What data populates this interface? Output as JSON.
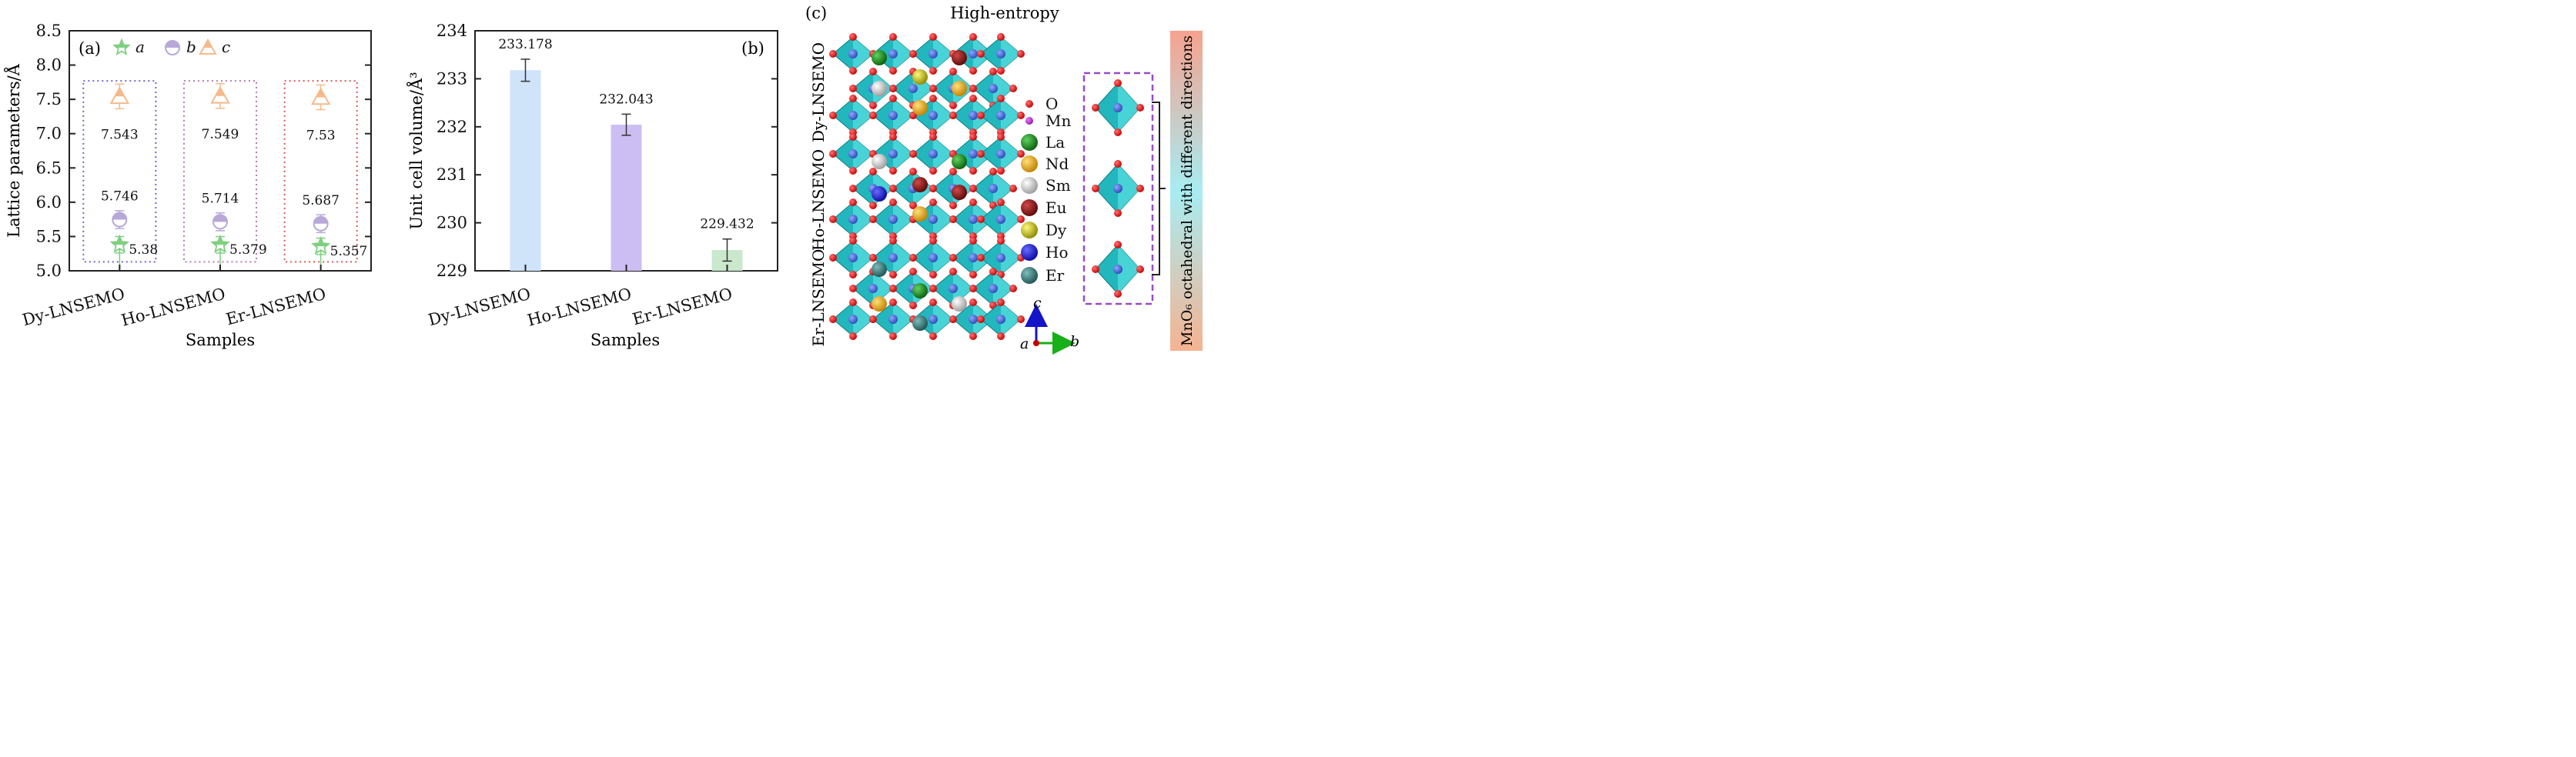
{
  "chart_data": [
    {
      "panel": "(a)",
      "type": "scatter",
      "xlabel": "Samples",
      "ylabel": "Lattice parameters/Å",
      "ylim": [
        5.0,
        8.5
      ],
      "yticks": [
        "5.0",
        "5.5",
        "6.0",
        "6.5",
        "7.0",
        "7.5",
        "8.0",
        "8.5"
      ],
      "categories": [
        "Dy-LNSEMO",
        "Ho-LNSEMO",
        "Er-LNSEMO"
      ],
      "legend": [
        "a",
        "b",
        "c"
      ],
      "legend_placement": "top-left",
      "series": [
        {
          "name": "a",
          "marker": "star",
          "color": "#7fcf80",
          "values": [
            5.38,
            5.379,
            5.357
          ],
          "labels": [
            "5.38",
            "5.379",
            "5.357"
          ],
          "err": [
            0.12,
            0.12,
            0.12
          ]
        },
        {
          "name": "b",
          "marker": "half-circle",
          "color": "#b7a8d8",
          "values": [
            5.746,
            5.714,
            5.687
          ],
          "labels": [
            "5.746",
            "5.714",
            "5.687"
          ],
          "err": [
            0.13,
            0.13,
            0.13
          ]
        },
        {
          "name": "c",
          "marker": "half-triangle",
          "color": "#f6b98b",
          "values": [
            7.543,
            7.549,
            7.53
          ],
          "labels": [
            "7.543",
            "7.549",
            "7.53"
          ],
          "err": [
            0.18,
            0.18,
            0.18
          ]
        }
      ],
      "boxes": [
        {
          "color": "#6f67c9",
          "y_range": [
            5.13,
            7.77
          ]
        },
        {
          "color": "#b57ab0",
          "y_range": [
            5.13,
            7.77
          ]
        },
        {
          "color": "#d65a5a",
          "y_range": [
            5.13,
            7.77
          ]
        }
      ]
    },
    {
      "panel": "(b)",
      "type": "bar",
      "xlabel": "Samples",
      "ylabel": "Unit cell volume/Å³",
      "ylim": [
        229,
        234
      ],
      "yticks": [
        "229",
        "230",
        "231",
        "232",
        "233",
        "234"
      ],
      "categories": [
        "Dy-LNSEMO",
        "Ho-LNSEMO",
        "Er-LNSEMO"
      ],
      "values": [
        233.178,
        232.043,
        229.432
      ],
      "labels": [
        "233.178",
        "232.043",
        "229.432"
      ],
      "err": [
        0.23,
        0.22,
        0.23
      ],
      "colors": [
        "#cfe3f9",
        "#ccbdf2",
        "#c9e8cc"
      ]
    }
  ],
  "panel_c": {
    "label": "(c)",
    "title": "High-entropy",
    "row_labels": [
      "Dy-LNSEMO",
      "Ho-LNSEMO",
      "Er-LNSEMO"
    ],
    "legend": [
      {
        "symbol": "O",
        "color": "#e01010"
      },
      {
        "symbol": "Mn",
        "color": "#b12ec4"
      },
      {
        "symbol": "La",
        "color": "#117d11"
      },
      {
        "symbol": "Nd",
        "color": "#e0a000"
      },
      {
        "symbol": "Sm",
        "color": "#c9c9c9"
      },
      {
        "symbol": "Eu",
        "color": "#8a0c0c"
      },
      {
        "symbol": "Dy",
        "color": "#b9b516"
      },
      {
        "symbol": "Ho",
        "color": "#1414c8"
      },
      {
        "symbol": "Er",
        "color": "#2f7a7a"
      }
    ],
    "axes": {
      "c": "c",
      "a": "a",
      "b": "b"
    },
    "side_label": "MnO₆ octahedral with different directions"
  }
}
